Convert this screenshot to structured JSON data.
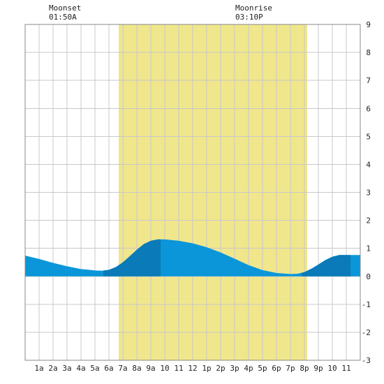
{
  "annotations": {
    "moonset": {
      "label": "Moonset",
      "time": "01:50A"
    },
    "moonrise": {
      "label": "Moonrise",
      "time": "03:10P"
    }
  },
  "chart_data": {
    "type": "area",
    "title": "",
    "xlabel": "",
    "ylabel": "",
    "xlim": [
      0,
      24
    ],
    "ylim": [
      -3,
      9
    ],
    "y_ticks": [
      9,
      8,
      7,
      6,
      5,
      4,
      3,
      2,
      1,
      0,
      -1,
      -2,
      -3
    ],
    "x_ticks": [
      {
        "h": 1,
        "label": "1a"
      },
      {
        "h": 2,
        "label": "2a"
      },
      {
        "h": 3,
        "label": "3a"
      },
      {
        "h": 4,
        "label": "4a"
      },
      {
        "h": 5,
        "label": "5a"
      },
      {
        "h": 6,
        "label": "6a"
      },
      {
        "h": 7,
        "label": "7a"
      },
      {
        "h": 8,
        "label": "8a"
      },
      {
        "h": 9,
        "label": "9a"
      },
      {
        "h": 10,
        "label": "10"
      },
      {
        "h": 11,
        "label": "11"
      },
      {
        "h": 12,
        "label": "12"
      },
      {
        "h": 13,
        "label": "1p"
      },
      {
        "h": 14,
        "label": "2p"
      },
      {
        "h": 15,
        "label": "3p"
      },
      {
        "h": 16,
        "label": "4p"
      },
      {
        "h": 17,
        "label": "5p"
      },
      {
        "h": 18,
        "label": "6p"
      },
      {
        "h": 19,
        "label": "7p"
      },
      {
        "h": 20,
        "label": "8p"
      },
      {
        "h": 21,
        "label": "9p"
      },
      {
        "h": 22,
        "label": "10"
      },
      {
        "h": 23,
        "label": "11"
      }
    ],
    "daylight": [
      6.7,
      20.2
    ],
    "grid": true,
    "colors": {
      "daylight": "#f0e68c",
      "tide": "#0a96d8",
      "tide_dark": "#0a7ab8",
      "grid": "#c8c8c8"
    },
    "dark_bands": [
      [
        5.6,
        9.7
      ],
      [
        19.8,
        23.3
      ]
    ],
    "series": [
      {
        "x": [
          0,
          1,
          2,
          3,
          4,
          5,
          5.5,
          6,
          6.5,
          7,
          7.5,
          8,
          8.5,
          9,
          9.5,
          10,
          11,
          12,
          13,
          14,
          15,
          16,
          17,
          18,
          19,
          19.5,
          20,
          20.5,
          21,
          21.5,
          22,
          22.5,
          23,
          23.5,
          24
        ],
        "y": [
          0.74,
          0.62,
          0.48,
          0.36,
          0.26,
          0.21,
          0.2,
          0.23,
          0.33,
          0.5,
          0.72,
          0.95,
          1.15,
          1.27,
          1.32,
          1.32,
          1.27,
          1.18,
          1.04,
          0.85,
          0.63,
          0.4,
          0.22,
          0.12,
          0.08,
          0.09,
          0.15,
          0.27,
          0.42,
          0.58,
          0.7,
          0.76,
          0.76,
          0.76,
          0.76
        ]
      }
    ]
  }
}
